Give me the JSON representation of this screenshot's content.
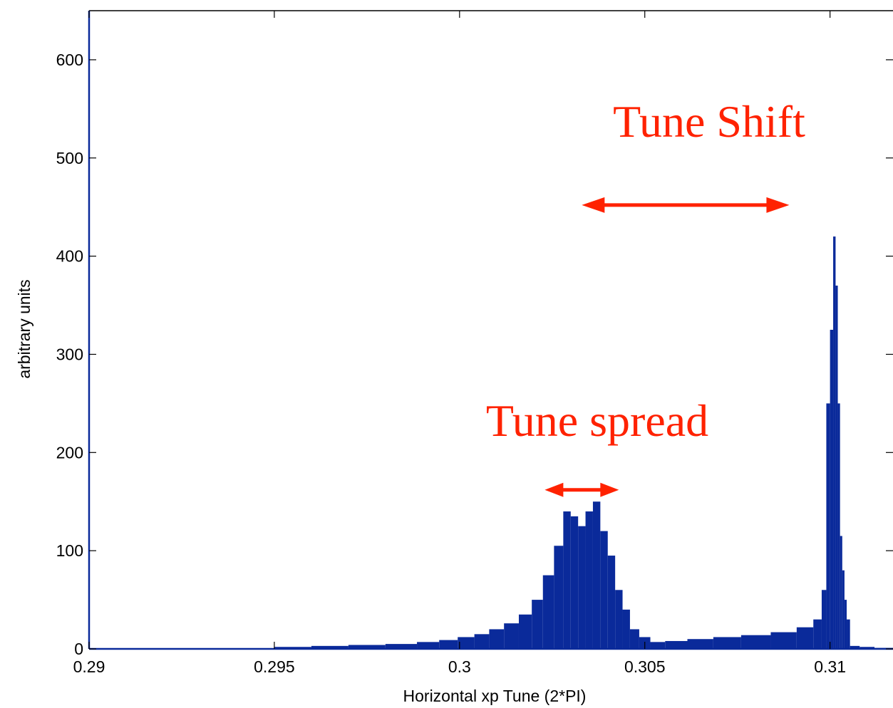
{
  "chart_data": {
    "type": "bar",
    "title": "",
    "xlabel": "Horizontal xp Tune (2*PI)",
    "ylabel": "arbitrary units",
    "xlim": [
      0.29,
      0.3117
    ],
    "ylim": [
      0,
      650
    ],
    "x_ticks": [
      0.29,
      0.295,
      0.3,
      0.305,
      0.31
    ],
    "x_tick_labels": [
      "0.29",
      "0.295",
      "0.3",
      "0.305",
      "0.31"
    ],
    "y_ticks": [
      0,
      100,
      200,
      300,
      400,
      500,
      600
    ],
    "y_tick_labels": [
      "0",
      "100",
      "200",
      "300",
      "400",
      "500",
      "600"
    ],
    "grid": false,
    "bar_color": "#0a2a9a",
    "series": [
      {
        "x": [
          0.2955,
          0.2965,
          0.2975,
          0.2985,
          0.2992,
          0.2997,
          0.3002,
          0.3006,
          0.301,
          0.3014,
          0.3018,
          0.3021,
          0.3024,
          0.3027,
          0.3029,
          0.3031,
          0.3033,
          0.3035,
          0.3037,
          0.3039,
          0.3041,
          0.3043,
          0.3045,
          0.3047,
          0.305,
          0.3053,
          0.3058,
          0.3065,
          0.3072,
          0.308,
          0.3088,
          0.3094,
          0.3097,
          0.30985,
          0.30995,
          0.31005,
          0.31012,
          0.31018,
          0.31024,
          0.3103,
          0.31036,
          0.31042,
          0.31048,
          0.3106,
          0.311,
          0.3114
        ],
        "values": [
          2,
          3,
          4,
          5,
          7,
          9,
          12,
          15,
          20,
          26,
          35,
          50,
          75,
          105,
          140,
          135,
          125,
          140,
          150,
          120,
          95,
          60,
          40,
          20,
          12,
          7,
          8,
          10,
          12,
          14,
          17,
          22,
          30,
          60,
          250,
          325,
          420,
          370,
          250,
          115,
          80,
          50,
          30,
          3,
          2,
          1
        ]
      }
    ],
    "annotations": [
      {
        "text": "Tune Shift",
        "color": "#ff2200",
        "x_from": 0.3033,
        "x_to": 0.3089,
        "y": 452
      },
      {
        "text": "Tune spread",
        "color": "#ff2200",
        "x_from": 0.3023,
        "x_to": 0.3043,
        "y": 162
      }
    ]
  }
}
